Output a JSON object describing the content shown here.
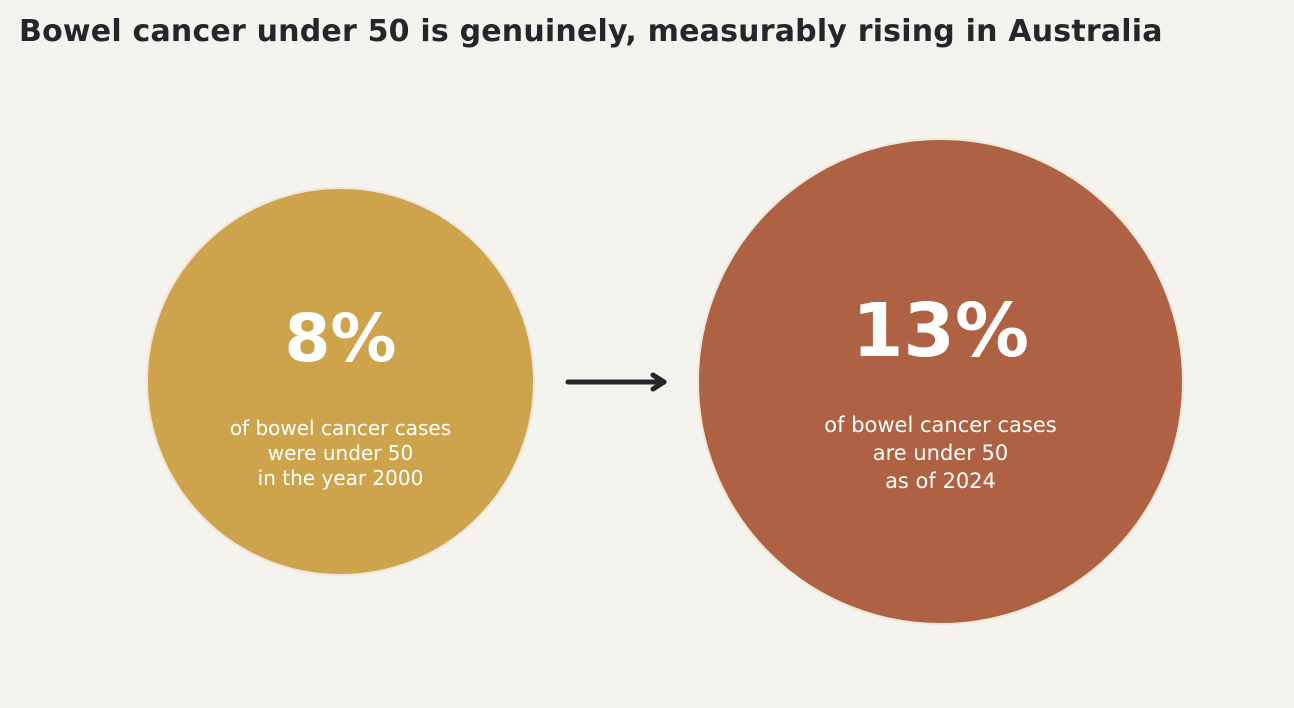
{
  "title": "Bowel cancer under 50 is genuinely, measurably rising in Australia",
  "colors": {
    "background": "#f5f3ee",
    "before_circle": "#cda44c",
    "after_circle": "#ae6243",
    "text_dark": "#23262b",
    "text_light": "#ffffff"
  },
  "before": {
    "value": "8%",
    "caption_lines": [
      "of bowel cancer cases",
      "were under 50",
      "in the year 2000"
    ]
  },
  "after": {
    "value": "13%",
    "caption_lines": [
      "of bowel cancer cases",
      "are under 50",
      "as of 2024"
    ]
  },
  "icons": {
    "transition": "arrow-right-icon"
  }
}
